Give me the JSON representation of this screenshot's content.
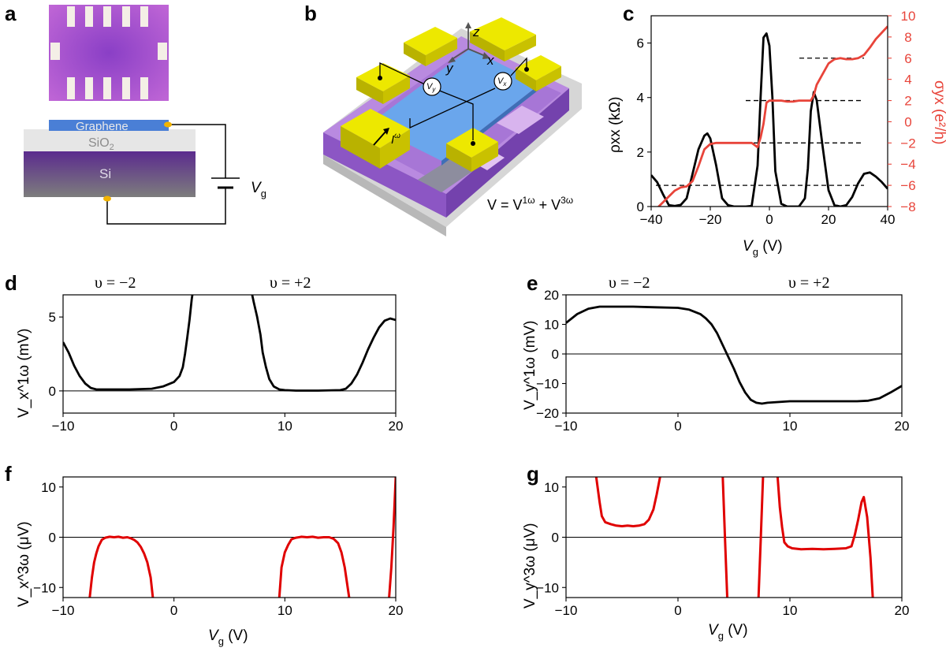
{
  "panel_labels": [
    "a",
    "b",
    "c",
    "d",
    "e",
    "f",
    "g"
  ],
  "panel_a": {
    "labels": {
      "graphene": "Graphene",
      "sio2": "SiO",
      "sio2_sub": "2",
      "si": "Si",
      "vg_main": "V",
      "vg_sub": "g"
    },
    "colors": {
      "graphene": "#4a7fd6",
      "sio2": "#e3e3e3",
      "si_top": "#6a3c98",
      "si_bottom": "#7a7a7a",
      "contact": "#f2b300",
      "micrograph": "#8a3fc6"
    }
  },
  "panel_b": {
    "labels": {
      "z": "z",
      "x": "x",
      "y": "y",
      "vy": "V",
      "vy_sub": "y",
      "vx": "V",
      "vx_sub": "x",
      "iw": "I",
      "iw_sup": "ω"
    },
    "equation": {
      "lhs": "V = V",
      "sup1": "1ω",
      "plus": " + V",
      "sup3": "3ω"
    },
    "colors": {
      "gold": "#ede800",
      "graphene": "#6aa6ec",
      "purple": "#9a66c9",
      "lavender": "#c49be6",
      "gray": "#cfcfcf"
    }
  },
  "panel_c": {
    "xlabel_main": "V",
    "xlabel_sub": "g",
    "xlabel_unit": " (V)",
    "ylabel_left": "ρxx (kΩ)",
    "ylabel_right": "σyx (e²/h)",
    "xticks": [
      "−40",
      "−20",
      "0",
      "20",
      "40"
    ],
    "yticks_left": [
      "0",
      "2",
      "4",
      "6"
    ],
    "yticks_right": [
      "−8",
      "−6",
      "−4",
      "−2",
      "0",
      "2",
      "4",
      "6",
      "8",
      "10"
    ]
  },
  "panel_d": {
    "annotations": [
      "υ = −2",
      "υ = +2"
    ],
    "ylabel": "V_x^1ω (mV)",
    "xticks": [
      "−10",
      "0",
      "10",
      "20"
    ],
    "yticks": [
      "0",
      "5"
    ]
  },
  "panel_e": {
    "annotations": [
      "υ = −2",
      "υ = +2"
    ],
    "ylabel": "V_y^1ω (mV)",
    "xticks": [
      "−10",
      "0",
      "10",
      "20"
    ],
    "yticks": [
      "−20",
      "−10",
      "0",
      "10",
      "20"
    ]
  },
  "panel_f": {
    "ylabel": "V_x^3ω (μV)",
    "xticks": [
      "−10",
      "0",
      "10",
      "20"
    ],
    "yticks": [
      "−10",
      "0",
      "10"
    ],
    "xlabel_main": "V",
    "xlabel_sub": "g",
    "xlabel_unit": " (V)"
  },
  "panel_g": {
    "ylabel": "V_y^3ω (μV)",
    "xticks": [
      "−10",
      "0",
      "10",
      "20"
    ],
    "yticks": [
      "−10",
      "0",
      "10"
    ],
    "xlabel_main": "V",
    "xlabel_sub": "g",
    "xlabel_unit": " (V)"
  },
  "chart_data": [
    {
      "panel": "c",
      "type": "line",
      "xlabel": "Vg (V)",
      "ylabel": "ρxx (kΩ)",
      "ylabel_right": "σyx (e²/h)",
      "xlim": [
        -40,
        40
      ],
      "ylim": [
        0,
        7
      ],
      "ylim_right": [
        -8,
        10
      ],
      "series": [
        {
          "name": "ρxx",
          "axis": "left",
          "color": "#000000",
          "x": [
            -40,
            -38,
            -36,
            -34,
            -32,
            -30,
            -28,
            -26,
            -24,
            -22,
            -21,
            -20,
            -18,
            -16,
            -14,
            -12,
            -10,
            -8,
            -6,
            -4,
            -3,
            -2,
            -1,
            0,
            1,
            2,
            4,
            6,
            8,
            10,
            12,
            13,
            14,
            15,
            16,
            18,
            20,
            22,
            24,
            26,
            28,
            30,
            32,
            34,
            36,
            38,
            40
          ],
          "y": [
            1.15,
            0.9,
            0.45,
            0.05,
            0.02,
            0.06,
            0.3,
            1.2,
            2.1,
            2.6,
            2.68,
            2.5,
            1.5,
            0.3,
            0.05,
            0.0,
            0.0,
            0.0,
            0.02,
            1.5,
            4.0,
            6.2,
            6.35,
            5.9,
            4.0,
            1.3,
            0.1,
            0.0,
            0.0,
            0.0,
            0.3,
            1.4,
            3.5,
            4.2,
            3.9,
            2.2,
            0.6,
            0.05,
            0.0,
            0.05,
            0.35,
            0.85,
            1.2,
            1.25,
            1.1,
            0.9,
            0.65
          ]
        },
        {
          "name": "σyx",
          "axis": "right",
          "color": "#e8443a",
          "x": [
            -40,
            -36,
            -32,
            -30,
            -28,
            -26,
            -24,
            -22,
            -20,
            -18,
            -14,
            -10,
            -8,
            -6,
            -4,
            -3,
            -2,
            -1,
            0,
            2,
            4,
            6,
            8,
            10,
            12,
            14,
            15,
            16,
            18,
            20,
            22,
            24,
            26,
            28,
            30,
            32,
            34,
            36,
            38,
            40
          ],
          "y": [
            -8.7,
            -7.6,
            -6.5,
            -6.2,
            -6.1,
            -5.6,
            -4.2,
            -2.6,
            -2.1,
            -2.0,
            -2.0,
            -2.0,
            -2.0,
            -2.0,
            -2.4,
            -1.5,
            -0.2,
            1.8,
            2.0,
            2.0,
            2.0,
            1.9,
            1.9,
            2.0,
            2.0,
            2.0,
            2.5,
            3.5,
            4.5,
            5.5,
            5.9,
            6.0,
            5.9,
            5.9,
            6.0,
            6.3,
            7.0,
            7.8,
            8.4,
            9.0
          ]
        }
      ],
      "hlines_right": [
        -6,
        -2,
        2,
        6
      ]
    },
    {
      "panel": "d",
      "type": "line",
      "xlabel": "Vg (V)",
      "ylabel": "Vx1ω (mV)",
      "xlim": [
        -10,
        20
      ],
      "ylim": [
        -1.5,
        6.5
      ],
      "series": [
        {
          "name": "Vx1ω",
          "color": "#000000",
          "x": [
            -10,
            -9.5,
            -9,
            -8.5,
            -8,
            -7.5,
            -7,
            -6,
            -4,
            -2,
            -1,
            0,
            0.5,
            0.8,
            1.0,
            1.2,
            1.4,
            1.5,
            1.6,
            1.7,
            7.0,
            7.2,
            7.5,
            7.8,
            8,
            8.3,
            8.6,
            9,
            9.5,
            10,
            11,
            13,
            15,
            15.5,
            16,
            16.5,
            17,
            17.5,
            18,
            18.5,
            19,
            19.5,
            20
          ],
          "y": [
            3.3,
            2.6,
            1.7,
            1.0,
            0.5,
            0.2,
            0.1,
            0.1,
            0.1,
            0.15,
            0.3,
            0.6,
            1.0,
            1.6,
            2.5,
            3.6,
            4.8,
            5.5,
            6.2,
            6.7,
            6.7,
            6.0,
            5.0,
            3.8,
            2.6,
            1.6,
            0.8,
            0.3,
            0.1,
            0.05,
            0.02,
            0.02,
            0.05,
            0.15,
            0.5,
            1.1,
            1.9,
            2.8,
            3.6,
            4.3,
            4.75,
            4.9,
            4.8
          ]
        }
      ]
    },
    {
      "panel": "e",
      "type": "line",
      "xlabel": "Vg (V)",
      "ylabel": "Vy1ω (mV)",
      "xlim": [
        -10,
        20
      ],
      "ylim": [
        -20,
        20
      ],
      "series": [
        {
          "name": "Vy1ω",
          "color": "#000000",
          "x": [
            -10,
            -9,
            -8,
            -7,
            -6,
            -4,
            -2,
            0,
            1,
            2,
            2.5,
            3,
            3.5,
            4,
            4.5,
            5,
            5.5,
            6,
            6.5,
            7,
            7.5,
            8,
            10,
            12,
            14,
            16,
            17,
            18,
            19,
            20
          ],
          "y": [
            10.5,
            13.5,
            15.3,
            16.0,
            16.0,
            16.0,
            15.8,
            15.6,
            15.0,
            13.5,
            12.0,
            10.0,
            7.0,
            3.0,
            -1.0,
            -5.0,
            -9.5,
            -13.0,
            -15.5,
            -16.5,
            -16.8,
            -16.5,
            -16.0,
            -16.0,
            -16.0,
            -16.0,
            -15.8,
            -15.0,
            -13.0,
            -10.8
          ]
        }
      ]
    },
    {
      "panel": "f",
      "type": "line",
      "xlabel": "Vg (V)",
      "ylabel": "Vx3ω (μV)",
      "xlim": [
        -10,
        20
      ],
      "ylim": [
        -12,
        12
      ],
      "series": [
        {
          "name": "Vx3ω",
          "color": "#e00000",
          "segments": [
            {
              "x": [
                -7.6,
                -7.4,
                -7.2,
                -7.0,
                -6.8,
                -6.5,
                -6.2,
                -5.8,
                -5.4,
                -5.0,
                -4.6,
                -4.2,
                -3.9,
                -3.6,
                -3.3,
                -3.0,
                -2.7,
                -2.4,
                -2.1,
                -1.9
              ],
              "y": [
                -12,
                -8,
                -5,
                -3.2,
                -1.8,
                -0.5,
                -0.1,
                0.1,
                0.0,
                0.1,
                -0.1,
                0.0,
                -0.2,
                -0.5,
                -1.0,
                -1.9,
                -3.2,
                -5.0,
                -8.0,
                -12
              ]
            },
            {
              "x": [
                9.5,
                9.7,
                10.0,
                10.3,
                10.6,
                11.0,
                11.5,
                12.0,
                12.5,
                13.0,
                13.5,
                14.0,
                14.4,
                14.8,
                15.1,
                15.4,
                15.6,
                15.8
              ],
              "y": [
                -12,
                -6,
                -3,
                -1.5,
                -0.4,
                -0.1,
                0.1,
                0.0,
                0.1,
                -0.1,
                0.0,
                0.0,
                -0.3,
                -1.2,
                -3,
                -6,
                -9,
                -12
              ]
            },
            {
              "x": [
                19.4,
                19.6,
                19.8,
                20.0
              ],
              "y": [
                -12,
                -6,
                2,
                12
              ]
            }
          ]
        }
      ]
    },
    {
      "panel": "g",
      "type": "line",
      "xlabel": "Vg (V)",
      "ylabel": "Vy3ω (μV)",
      "xlim": [
        -10,
        20
      ],
      "ylim": [
        -12,
        12
      ],
      "series": [
        {
          "name": "Vy3ω",
          "color": "#e00000",
          "segments": [
            {
              "x": [
                -7.3,
                -7.0,
                -6.8,
                -6.5,
                -6.0,
                -5.5,
                -5.0,
                -4.5,
                -4.0,
                -3.5,
                -3.0,
                -2.6,
                -2.2,
                -1.9,
                -1.6
              ],
              "y": [
                12,
                7,
                4.2,
                3.0,
                2.6,
                2.3,
                2.2,
                2.3,
                2.2,
                2.3,
                2.6,
                3.5,
                5.5,
                8.5,
                12
              ]
            },
            {
              "x": [
                4.0,
                4.2,
                4.4
              ],
              "y": [
                12,
                0,
                -12
              ]
            },
            {
              "x": [
                7.2,
                7.4,
                7.6
              ],
              "y": [
                -12,
                0,
                12
              ]
            },
            {
              "x": [
                8.9,
                9.1,
                9.3,
                9.5,
                9.8,
                10.2,
                11,
                12,
                13,
                14,
                15,
                15.5,
                15.8,
                16.1,
                16.4,
                16.6,
                16.9,
                17.2,
                17.4
              ],
              "y": [
                12,
                6,
                2,
                -1.0,
                -1.8,
                -2.2,
                -2.4,
                -2.3,
                -2.4,
                -2.3,
                -2.2,
                -1.8,
                0.5,
                3.5,
                7.0,
                8.0,
                4.0,
                -4.0,
                -12
              ]
            }
          ]
        }
      ]
    }
  ]
}
